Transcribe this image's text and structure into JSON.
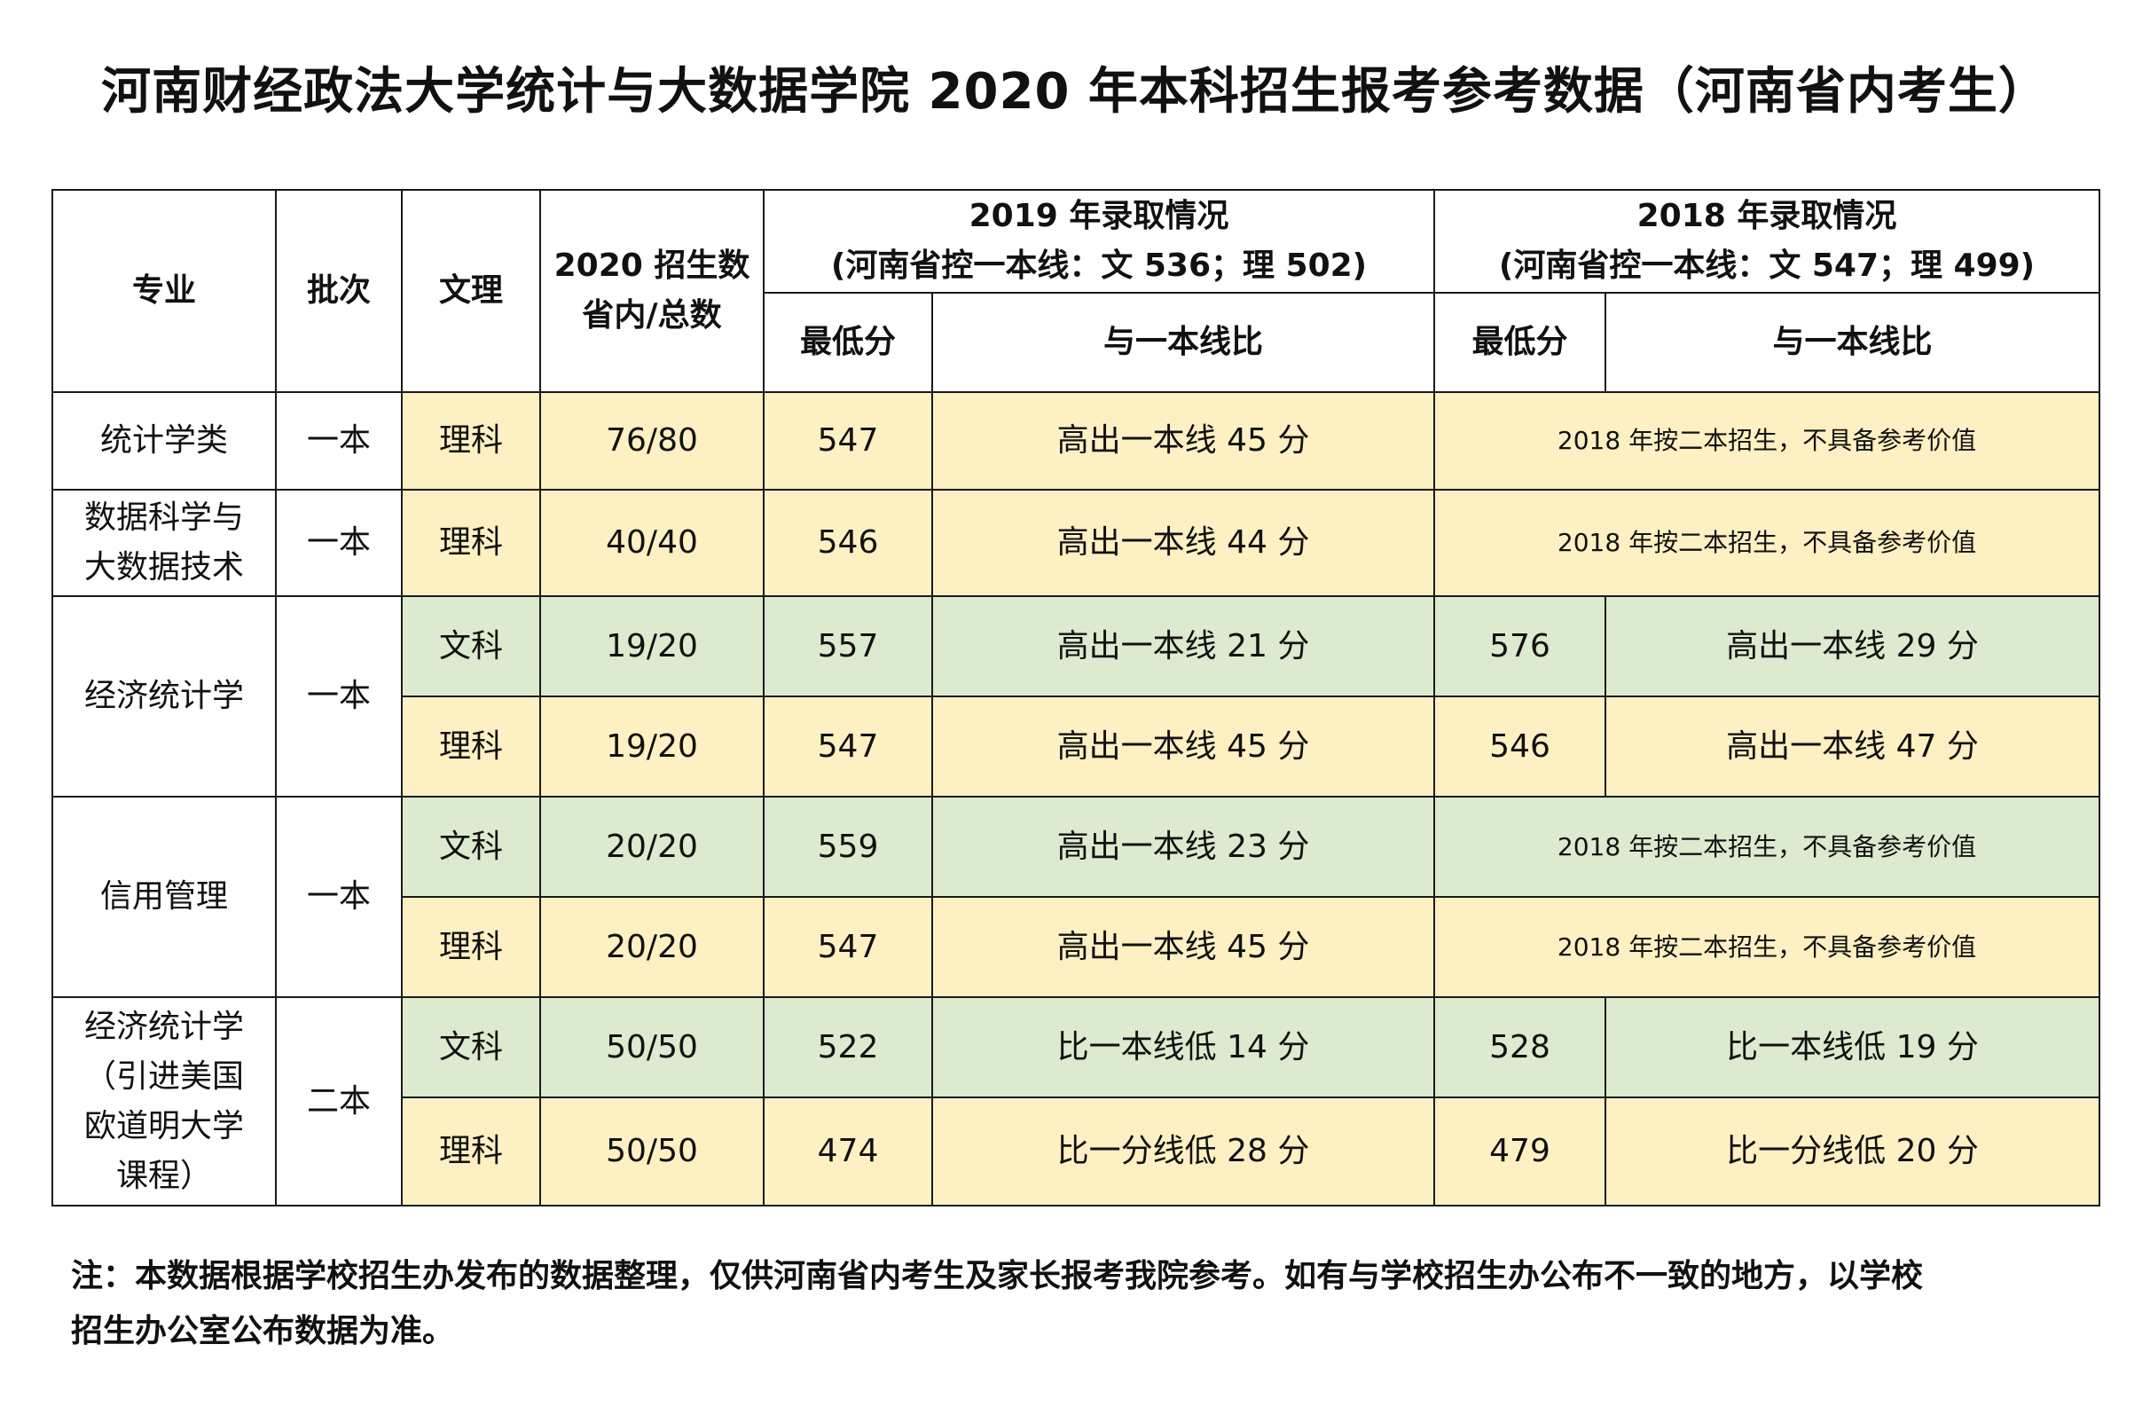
{
  "title": "河南财经政法大学统计与大数据学院 2020 年本科招生报考参考数据（河南省内考生）",
  "header": {
    "major": "专业",
    "batch": "批次",
    "track": "文理",
    "quota_line1": "2020 招生数",
    "quota_line2": "省内/总数",
    "y2019_line1": "2019 年录取情况",
    "y2019_line2": "(河南省控一本线：文 536；理 502)",
    "y2018_line1": "2018 年录取情况",
    "y2018_line2": "(河南省控一本线：文 547；理 499)",
    "min_score": "最低分",
    "compare": "与一本线比"
  },
  "rows": [
    {
      "major": "统计学类",
      "batch": "一本",
      "track": "理科",
      "quota": "76/80",
      "min2019": "547",
      "cmp2019": "高出一本线 45 分",
      "note2018": "2018 年按二本招生，不具备参考价值"
    },
    {
      "major_line1": "数据科学与",
      "major_line2": "大数据技术",
      "batch": "一本",
      "track": "理科",
      "quota": "40/40",
      "min2019": "546",
      "cmp2019": "高出一本线 44 分",
      "note2018": "2018 年按二本招生，不具备参考价值"
    },
    {
      "major": "经济统计学",
      "batch": "一本",
      "track": "文科",
      "quota": "19/20",
      "min2019": "557",
      "cmp2019": "高出一本线 21 分",
      "min2018": "576",
      "cmp2018": "高出一本线 29 分"
    },
    {
      "track": "理科",
      "quota": "19/20",
      "min2019": "547",
      "cmp2019": "高出一本线 45 分",
      "min2018": "546",
      "cmp2018": "高出一本线 47 分"
    },
    {
      "major": "信用管理",
      "batch": "一本",
      "track": "文科",
      "quota": "20/20",
      "min2019": "559",
      "cmp2019": "高出一本线 23 分",
      "note2018": "2018 年按二本招生，不具备参考价值"
    },
    {
      "track": "理科",
      "quota": "20/20",
      "min2019": "547",
      "cmp2019": "高出一本线 45 分",
      "note2018": "2018 年按二本招生，不具备参考价值"
    },
    {
      "major_line1": "经济统计学",
      "major_line2": "（引进美国",
      "major_line3": "欧道明大学",
      "major_line4": "课程）",
      "batch": "二本",
      "track": "文科",
      "quota": "50/50",
      "min2019": "522",
      "cmp2019": "比一本线低 14 分",
      "min2018": "528",
      "cmp2018": "比一本线低 19 分"
    },
    {
      "track": "理科",
      "quota": "50/50",
      "min2019": "474",
      "cmp2019": "比一分线低 28 分",
      "min2018": "479",
      "cmp2018": "比一分线低 20 分"
    }
  ],
  "note_line1": "注：本数据根据学校招生办发布的数据整理，仅供河南省内考生及家长报考我院参考。如有与学校招生办公布不一致的地方，以学校",
  "note_line2": "招生办公室公布数据为准。",
  "colors": {
    "yellow_fill": "#fdf0c2",
    "green_fill": "#dcead0",
    "border": "#1a1a1a"
  }
}
